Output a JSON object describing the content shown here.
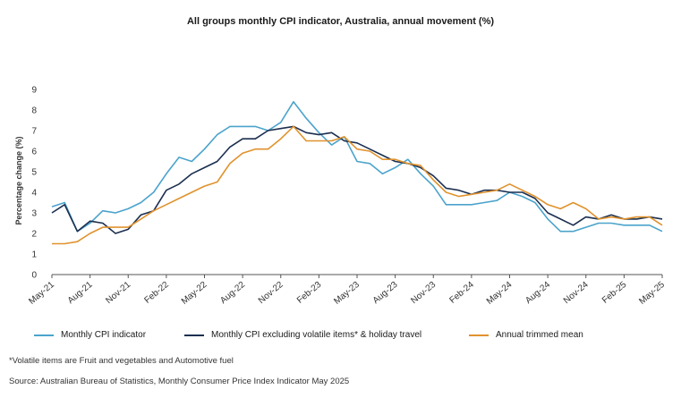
{
  "chart_data": {
    "type": "line",
    "title": "All groups monthly CPI indicator, Australia, annual movement (%)",
    "xlabel": "",
    "ylabel": "Percentage change (%)",
    "ylim": [
      0,
      9
    ],
    "yticks": [
      0,
      1,
      2,
      3,
      4,
      5,
      6,
      7,
      8,
      9
    ],
    "grid": false,
    "legend_position": "bottom",
    "x_tick_labels": [
      "May-21",
      "Aug-21",
      "Nov-21",
      "Feb-22",
      "May-22",
      "Aug-22",
      "Nov-22",
      "Feb-23",
      "May-23",
      "Aug-23",
      "Nov-23",
      "Feb-24",
      "May-24",
      "Aug-24",
      "Nov-24",
      "Feb-25",
      "May-25"
    ],
    "categories": [
      "May-21",
      "Jun-21",
      "Jul-21",
      "Aug-21",
      "Sep-21",
      "Oct-21",
      "Nov-21",
      "Dec-21",
      "Jan-22",
      "Feb-22",
      "Mar-22",
      "Apr-22",
      "May-22",
      "Jun-22",
      "Jul-22",
      "Aug-22",
      "Sep-22",
      "Oct-22",
      "Nov-22",
      "Dec-22",
      "Jan-23",
      "Feb-23",
      "Mar-23",
      "Apr-23",
      "May-23",
      "Jun-23",
      "Jul-23",
      "Aug-23",
      "Sep-23",
      "Oct-23",
      "Nov-23",
      "Dec-23",
      "Jan-24",
      "Feb-24",
      "Mar-24",
      "Apr-24",
      "May-24",
      "Jun-24",
      "Jul-24",
      "Aug-24",
      "Sep-24",
      "Oct-24",
      "Nov-24",
      "Dec-24",
      "Jan-25",
      "Feb-25",
      "Mar-25",
      "Apr-25",
      "May-25"
    ],
    "series": [
      {
        "name": "Monthly CPI indicator",
        "color": "#4ba3cc",
        "values": [
          3.3,
          3.5,
          2.1,
          2.5,
          3.1,
          3.0,
          3.2,
          3.5,
          4.0,
          4.9,
          5.7,
          5.5,
          6.1,
          6.8,
          7.2,
          7.2,
          7.2,
          7.0,
          7.4,
          8.4,
          7.6,
          6.9,
          6.3,
          6.7,
          5.5,
          5.4,
          4.9,
          5.2,
          5.6,
          4.9,
          4.3,
          3.4,
          3.4,
          3.4,
          3.5,
          3.6,
          4.0,
          3.8,
          3.5,
          2.7,
          2.1,
          2.1,
          2.3,
          2.5,
          2.5,
          2.4,
          2.4,
          2.4,
          2.1
        ]
      },
      {
        "name": "Monthly CPI excluding volatile items* & holiday travel",
        "color": "#1b2f50",
        "values": [
          3.0,
          3.4,
          2.1,
          2.6,
          2.5,
          2.0,
          2.2,
          2.9,
          3.1,
          4.1,
          4.4,
          4.9,
          5.2,
          5.5,
          6.2,
          6.6,
          6.6,
          7.0,
          7.1,
          7.2,
          6.9,
          6.8,
          6.9,
          6.5,
          6.4,
          6.1,
          5.8,
          5.5,
          5.4,
          5.2,
          4.8,
          4.2,
          4.1,
          3.9,
          4.1,
          4.1,
          4.0,
          4.0,
          3.7,
          3.0,
          2.7,
          2.4,
          2.8,
          2.7,
          2.9,
          2.7,
          2.7,
          2.8,
          2.7
        ]
      },
      {
        "name": "Annual trimmed mean",
        "color": "#e0922d",
        "values": [
          1.5,
          1.5,
          1.6,
          2.0,
          2.3,
          2.3,
          2.3,
          2.7,
          3.1,
          3.4,
          3.7,
          4.0,
          4.3,
          4.5,
          5.4,
          5.9,
          6.1,
          6.1,
          6.6,
          7.2,
          6.5,
          6.5,
          6.5,
          6.7,
          6.1,
          6.0,
          5.6,
          5.6,
          5.4,
          5.3,
          4.6,
          4.0,
          3.8,
          3.9,
          4.0,
          4.1,
          4.4,
          4.1,
          3.8,
          3.4,
          3.2,
          3.5,
          3.2,
          2.7,
          2.8,
          2.7,
          2.8,
          2.8,
          2.4
        ]
      }
    ]
  },
  "footnotes": {
    "volatile": "*Volatile items are Fruit and vegetables and Automotive fuel",
    "source": "Source: Australian Bureau of Statistics, Monthly Consumer Price Index Indicator May 2025"
  }
}
